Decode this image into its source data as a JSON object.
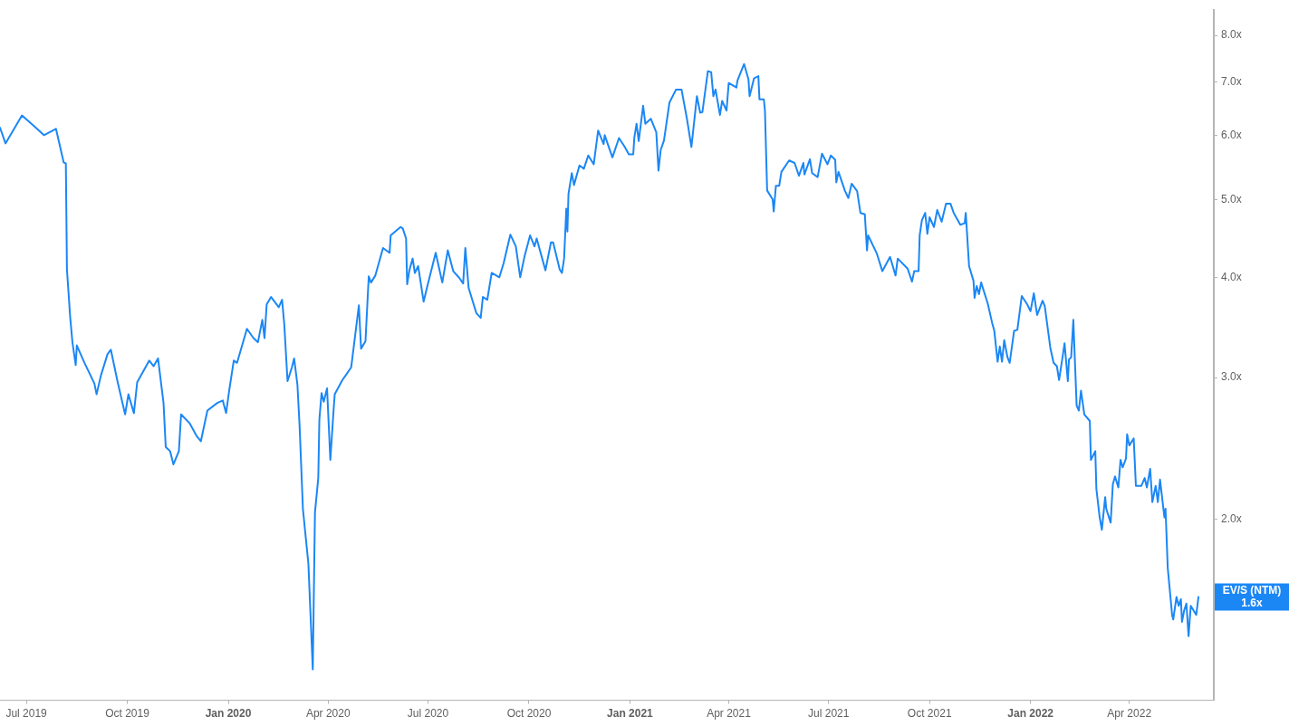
{
  "chart_data": {
    "type": "line",
    "log": "y",
    "grid": false,
    "legend": false,
    "marker": "none",
    "line_style": "solid",
    "x": [
      "2019-06-07",
      "2019-06-12",
      "2019-06-27",
      "2019-07-08",
      "2019-07-17",
      "2019-07-28",
      "2019-08-04",
      "2019-08-06",
      "2019-08-07",
      "2019-08-10",
      "2019-08-12",
      "2019-08-15",
      "2019-08-16",
      "2019-08-23",
      "2019-09-01",
      "2019-09-03",
      "2019-09-07",
      "2019-09-13",
      "2019-09-16",
      "2019-09-22",
      "2019-09-29",
      "2019-10-02",
      "2019-10-07",
      "2019-10-10",
      "2019-10-21",
      "2019-10-25",
      "2019-10-29",
      "2019-11-03",
      "2019-11-05",
      "2019-11-09",
      "2019-11-12",
      "2019-11-17",
      "2019-11-19",
      "2019-11-27",
      "2019-12-03",
      "2019-12-07",
      "2019-12-13",
      "2019-12-22",
      "2019-12-27",
      "2019-12-30",
      "2020-01-02",
      "2020-01-06",
      "2020-01-09",
      "2020-01-18",
      "2020-01-24",
      "2020-01-28",
      "2020-02-01",
      "2020-02-03",
      "2020-02-05",
      "2020-02-09",
      "2020-02-16",
      "2020-02-19",
      "2020-02-21",
      "2020-02-24",
      "2020-02-28",
      "2020-03-01",
      "2020-03-04",
      "2020-03-06",
      "2020-03-09",
      "2020-03-14",
      "2020-03-18",
      "2020-03-20",
      "2020-03-23",
      "2020-03-24",
      "2020-03-26",
      "2020-03-28",
      "2020-03-31",
      "2020-04-03",
      "2020-04-06",
      "2020-04-07",
      "2020-04-14",
      "2020-04-17",
      "2020-04-22",
      "2020-04-29",
      "2020-05-01",
      "2020-05-05",
      "2020-05-08",
      "2020-05-10",
      "2020-05-14",
      "2020-05-21",
      "2020-05-27",
      "2020-05-28",
      "2020-06-06",
      "2020-06-08",
      "2020-06-11",
      "2020-06-12",
      "2020-06-14",
      "2020-06-17",
      "2020-06-19",
      "2020-06-22",
      "2020-06-27",
      "2020-06-30",
      "2020-07-08",
      "2020-07-14",
      "2020-07-19",
      "2020-07-24",
      "2020-07-29",
      "2020-08-02",
      "2020-08-04",
      "2020-08-07",
      "2020-08-14",
      "2020-08-18",
      "2020-08-20",
      "2020-08-24",
      "2020-08-28",
      "2020-09-04",
      "2020-09-08",
      "2020-09-14",
      "2020-09-19",
      "2020-09-23",
      "2020-09-27",
      "2020-10-02",
      "2020-10-06",
      "2020-10-08",
      "2020-10-16",
      "2020-10-21",
      "2020-10-23",
      "2020-10-29",
      "2020-10-31",
      "2020-11-02",
      "2020-11-04",
      "2020-11-05",
      "2020-11-06",
      "2020-11-09",
      "2020-11-11",
      "2020-11-16",
      "2020-11-20",
      "2020-11-24",
      "2020-11-29",
      "2020-12-03",
      "2020-12-08",
      "2020-12-09",
      "2020-12-16",
      "2020-12-22",
      "2020-12-27",
      "2020-12-31",
      "2021-01-04",
      "2021-01-05",
      "2021-01-07",
      "2021-01-09",
      "2021-01-13",
      "2021-01-15",
      "2021-01-20",
      "2021-01-25",
      "2021-01-27",
      "2021-01-29",
      "2021-02-01",
      "2021-02-06",
      "2021-02-12",
      "2021-02-17",
      "2021-02-22",
      "2021-02-26",
      "2021-03-03",
      "2021-03-06",
      "2021-03-08",
      "2021-03-13",
      "2021-03-16",
      "2021-03-18",
      "2021-03-20",
      "2021-03-24",
      "2021-03-26",
      "2021-03-30",
      "2021-04-01",
      "2021-04-08",
      "2021-04-09",
      "2021-04-15",
      "2021-04-19",
      "2021-04-20",
      "2021-04-24",
      "2021-04-28",
      "2021-04-29",
      "2021-05-03",
      "2021-05-04",
      "2021-05-06",
      "2021-05-11",
      "2021-05-12",
      "2021-05-14",
      "2021-05-17",
      "2021-05-19",
      "2021-05-26",
      "2021-05-31",
      "2021-06-04",
      "2021-06-08",
      "2021-06-09",
      "2021-06-14",
      "2021-06-16",
      "2021-06-21",
      "2021-06-25",
      "2021-06-30",
      "2021-07-03",
      "2021-07-07",
      "2021-07-08",
      "2021-07-10",
      "2021-07-16",
      "2021-07-19",
      "2021-07-22",
      "2021-07-27",
      "2021-07-30",
      "2021-08-03",
      "2021-08-05",
      "2021-08-06",
      "2021-08-14",
      "2021-08-19",
      "2021-08-26",
      "2021-08-31",
      "2021-09-02",
      "2021-09-11",
      "2021-09-15",
      "2021-09-17",
      "2021-09-21",
      "2021-09-22",
      "2021-09-24",
      "2021-09-27",
      "2021-09-29",
      "2021-10-01",
      "2021-10-05",
      "2021-10-08",
      "2021-10-12",
      "2021-10-16",
      "2021-10-20",
      "2021-10-23",
      "2021-10-29",
      "2021-11-02",
      "2021-11-03",
      "2021-11-04",
      "2021-11-06",
      "2021-11-10",
      "2021-11-11",
      "2021-11-13",
      "2021-11-15",
      "2021-11-17",
      "2021-11-23",
      "2021-11-27",
      "2021-11-29",
      "2021-12-02",
      "2021-12-04",
      "2021-12-06",
      "2021-12-08",
      "2021-12-11",
      "2021-12-13",
      "2021-12-17",
      "2021-12-20",
      "2021-12-24",
      "2021-12-29",
      "2022-01-01",
      "2022-01-04",
      "2022-01-07",
      "2022-01-12",
      "2022-01-14",
      "2022-01-19",
      "2022-01-22",
      "2022-01-25",
      "2022-01-27",
      "2022-01-30",
      "2022-02-01",
      "2022-02-04",
      "2022-02-05",
      "2022-02-07",
      "2022-02-09",
      "2022-02-10",
      "2022-02-12",
      "2022-02-14",
      "2022-02-16",
      "2022-02-19",
      "2022-02-24",
      "2022-02-25",
      "2022-03-01",
      "2022-03-02",
      "2022-03-05",
      "2022-03-07",
      "2022-03-10",
      "2022-03-11",
      "2022-03-15",
      "2022-03-17",
      "2022-03-19",
      "2022-03-22",
      "2022-03-24",
      "2022-03-26",
      "2022-03-29",
      "2022-03-30",
      "2022-04-01",
      "2022-04-05",
      "2022-04-07",
      "2022-04-12",
      "2022-04-15",
      "2022-04-17",
      "2022-04-20",
      "2022-04-22",
      "2022-04-25",
      "2022-04-27",
      "2022-04-29",
      "2022-05-03",
      "2022-05-04",
      "2022-05-06",
      "2022-05-10",
      "2022-05-11",
      "2022-05-14",
      "2022-05-16",
      "2022-05-18",
      "2022-05-19",
      "2022-05-21",
      "2022-05-23",
      "2022-05-25",
      "2022-05-27",
      "2022-06-01",
      "2022-06-03"
    ],
    "series": [
      {
        "name": "EV/S (NTM)",
        "color": "#1b87f5",
        "values": [
          6.14,
          5.87,
          6.36,
          6.17,
          6.01,
          6.12,
          5.56,
          5.54,
          4.09,
          3.56,
          3.32,
          3.11,
          3.29,
          3.13,
          2.95,
          2.86,
          3.02,
          3.21,
          3.25,
          2.97,
          2.7,
          2.86,
          2.71,
          2.96,
          3.15,
          3.1,
          3.17,
          2.79,
          2.46,
          2.43,
          2.34,
          2.43,
          2.7,
          2.63,
          2.54,
          2.5,
          2.73,
          2.79,
          2.81,
          2.71,
          2.9,
          3.15,
          3.13,
          3.45,
          3.36,
          3.32,
          3.54,
          3.36,
          3.7,
          3.78,
          3.67,
          3.75,
          3.5,
          2.97,
          3.09,
          3.17,
          2.94,
          2.61,
          2.06,
          1.76,
          1.3,
          2.04,
          2.25,
          2.66,
          2.87,
          2.8,
          2.91,
          2.37,
          2.74,
          2.86,
          2.98,
          3.02,
          3.09,
          3.69,
          3.26,
          3.33,
          4.01,
          3.94,
          4.02,
          4.35,
          4.29,
          4.51,
          4.62,
          4.6,
          4.47,
          3.92,
          4.08,
          4.22,
          4.05,
          4.13,
          3.73,
          3.88,
          4.29,
          3.94,
          4.32,
          4.07,
          4.0,
          3.93,
          4.35,
          3.88,
          3.61,
          3.56,
          3.78,
          3.75,
          4.05,
          4.0,
          4.17,
          4.52,
          4.37,
          4.0,
          4.25,
          4.51,
          4.37,
          4.47,
          4.08,
          4.42,
          4.42,
          4.09,
          4.05,
          4.22,
          4.87,
          4.56,
          5.08,
          5.39,
          5.21,
          5.51,
          5.46,
          5.67,
          5.53,
          6.09,
          5.86,
          6.01,
          5.64,
          5.96,
          5.82,
          5.69,
          5.69,
          5.97,
          6.21,
          5.91,
          6.54,
          6.21,
          6.3,
          6.06,
          5.43,
          5.76,
          5.92,
          6.6,
          6.85,
          6.85,
          6.29,
          5.81,
          6.72,
          6.41,
          6.42,
          7.22,
          7.2,
          6.72,
          6.85,
          6.37,
          6.63,
          6.45,
          6.98,
          6.89,
          7.03,
          7.37,
          7.05,
          6.72,
          7.07,
          7.12,
          6.66,
          6.66,
          6.45,
          5.13,
          5.0,
          4.83,
          5.2,
          5.2,
          5.41,
          5.59,
          5.55,
          5.35,
          5.55,
          5.37,
          5.61,
          5.39,
          5.33,
          5.7,
          5.53,
          5.67,
          5.6,
          5.25,
          5.41,
          5.12,
          5.02,
          5.23,
          5.12,
          4.81,
          4.79,
          4.32,
          4.51,
          4.28,
          4.07,
          4.24,
          4.02,
          4.22,
          4.1,
          3.95,
          4.07,
          4.07,
          4.51,
          4.71,
          4.81,
          4.53,
          4.75,
          4.62,
          4.85,
          4.69,
          4.94,
          4.94,
          4.81,
          4.65,
          4.67,
          4.81,
          4.57,
          4.13,
          3.96,
          3.77,
          3.9,
          3.81,
          3.94,
          3.71,
          3.51,
          3.43,
          3.14,
          3.28,
          3.14,
          3.34,
          3.18,
          3.13,
          3.43,
          3.44,
          3.79,
          3.7,
          3.63,
          3.82,
          3.59,
          3.74,
          3.68,
          3.27,
          3.13,
          3.1,
          2.98,
          3.17,
          3.31,
          2.97,
          3.16,
          3.18,
          3.54,
          3.26,
          2.77,
          2.73,
          2.89,
          2.7,
          2.65,
          2.37,
          2.43,
          2.18,
          2.01,
          1.94,
          2.13,
          2.06,
          1.98,
          2.21,
          2.26,
          2.19,
          2.37,
          2.32,
          2.38,
          2.55,
          2.47,
          2.52,
          2.2,
          2.2,
          2.25,
          2.19,
          2.31,
          2.1,
          2.2,
          2.1,
          2.24,
          2.01,
          2.06,
          1.74,
          1.52,
          1.5,
          1.6,
          1.56,
          1.59,
          1.49,
          1.54,
          1.57,
          1.43,
          1.56,
          1.52,
          1.6
        ]
      }
    ],
    "xlim": [
      "2019-06-07",
      "2022-06-17"
    ],
    "xticks": [
      {
        "value": "2019-07-01",
        "label": "Jul 2019"
      },
      {
        "value": "2019-10-01",
        "label": "Oct 2019"
      },
      {
        "value": "2020-01-01",
        "label": "Jan 2020"
      },
      {
        "value": "2020-04-01",
        "label": "Apr 2020"
      },
      {
        "value": "2020-07-01",
        "label": "Jul 2020"
      },
      {
        "value": "2020-10-01",
        "label": "Oct 2020"
      },
      {
        "value": "2021-01-01",
        "label": "Jan 2021"
      },
      {
        "value": "2021-04-01",
        "label": "Apr 2021"
      },
      {
        "value": "2021-07-01",
        "label": "Jul 2021"
      },
      {
        "value": "2021-10-01",
        "label": "Oct 2021"
      },
      {
        "value": "2022-01-01",
        "label": "Jan 2022"
      },
      {
        "value": "2022-04-01",
        "label": "Apr 2022"
      }
    ],
    "ylim": [
      1.19,
      8.6
    ],
    "yticks": [
      {
        "value": 2,
        "label": "2.0x"
      },
      {
        "value": 3,
        "label": "3.0x"
      },
      {
        "value": 4,
        "label": "4.0x"
      },
      {
        "value": 5,
        "label": "5.0x"
      },
      {
        "value": 6,
        "label": "6.0x"
      },
      {
        "value": 7,
        "label": "7.0x"
      },
      {
        "value": 8,
        "label": "8.0x"
      }
    ],
    "annotations": [
      "1.6x"
    ]
  }
}
